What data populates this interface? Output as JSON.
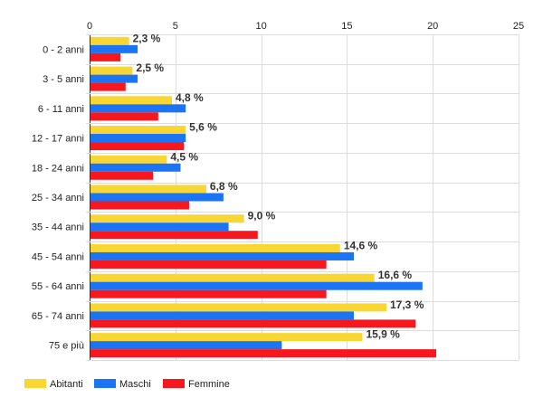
{
  "chart_data": {
    "type": "bar",
    "orientation": "horizontal",
    "categories": [
      "0 - 2 anni",
      "3 - 5 anni",
      "6 - 11 anni",
      "12 - 17 anni",
      "18 - 24 anni",
      "25 - 34 anni",
      "35 - 44 anni",
      "45 - 54 anni",
      "55 - 64 anni",
      "65 - 74 anni",
      "75 e più"
    ],
    "series": [
      {
        "name": "Abitanti",
        "color": "#f8d634",
        "values": [
          2.3,
          2.5,
          4.8,
          5.6,
          4.5,
          6.8,
          9.0,
          14.6,
          16.6,
          17.3,
          15.9
        ],
        "labels": [
          "2,3 %",
          "2,5 %",
          "4,8 %",
          "5,6 %",
          "4,5 %",
          "6,8 %",
          "9,0 %",
          "14,6 %",
          "16,6 %",
          "17,3 %",
          "15,9 %"
        ]
      },
      {
        "name": "Maschi",
        "color": "#1b74f4",
        "values": [
          2.8,
          2.8,
          5.6,
          5.6,
          5.3,
          7.8,
          8.1,
          15.4,
          19.4,
          15.4,
          11.2
        ]
      },
      {
        "name": "Femmine",
        "color": "#f6171f",
        "values": [
          1.8,
          2.1,
          4.0,
          5.5,
          3.7,
          5.8,
          9.8,
          13.8,
          13.8,
          19.0,
          20.2
        ]
      }
    ],
    "x_axis": {
      "ticks": [
        "0",
        "5",
        "10",
        "15",
        "20",
        "25"
      ],
      "range": [
        0,
        25
      ],
      "position": "top"
    },
    "grid": true,
    "legend_position": "bottom-left"
  }
}
